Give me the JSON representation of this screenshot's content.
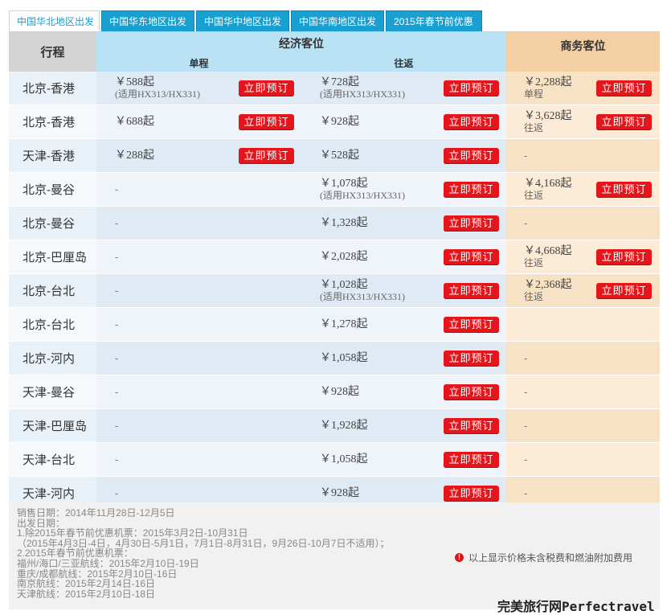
{
  "tabs": [
    {
      "label": "中国华北地区出发",
      "active": true
    },
    {
      "label": "中国华东地区出发",
      "active": false
    },
    {
      "label": "中国华中地区出发",
      "active": false
    },
    {
      "label": "中国华南地区出发",
      "active": false
    },
    {
      "label": "2015年春节前优惠",
      "active": false
    }
  ],
  "header": {
    "route": "行程",
    "economy": "经济客位",
    "business": "商务客位",
    "oneway": "单程",
    "roundtrip": "往返"
  },
  "book_label": "立即预订",
  "rows": [
    {
      "route": "北京-香港",
      "ow": {
        "price": "￥588起",
        "note": "(适用HX313/HX331)"
      },
      "rt": {
        "price": "￥728起",
        "note": "(适用HX313/HX331)"
      },
      "biz": {
        "price": "￥2,288起",
        "note": "单程"
      }
    },
    {
      "route": "北京-香港",
      "ow": {
        "price": "￥688起",
        "note": ""
      },
      "rt": {
        "price": "￥928起",
        "note": ""
      },
      "biz": {
        "price": "￥3,628起",
        "note": "往返"
      }
    },
    {
      "route": "天津-香港",
      "ow": {
        "price": "￥288起",
        "note": ""
      },
      "rt": {
        "price": "￥528起",
        "note": ""
      },
      "biz": null
    },
    {
      "route": "北京-曼谷",
      "ow": null,
      "rt": {
        "price": "￥1,078起",
        "note": "(适用HX313/HX331)"
      },
      "biz": {
        "price": "￥4,168起",
        "note": "往返"
      }
    },
    {
      "route": "北京-曼谷",
      "ow": null,
      "rt": {
        "price": "￥1,328起",
        "note": ""
      },
      "biz": null
    },
    {
      "route": "北京-巴厘岛",
      "ow": null,
      "rt": {
        "price": "￥2,028起",
        "note": ""
      },
      "biz": {
        "price": "￥4,668起",
        "note": "往返"
      }
    },
    {
      "route": "北京-台北",
      "ow": null,
      "rt": {
        "price": "￥1,028起",
        "note": "(适用HX313/HX331)"
      },
      "biz": {
        "price": "￥2,368起",
        "note": "往返"
      }
    },
    {
      "route": "北京-台北",
      "ow": null,
      "rt": {
        "price": "￥1,278起",
        "note": ""
      },
      "biz": "blank"
    },
    {
      "route": "北京-河内",
      "ow": null,
      "rt": {
        "price": "￥1,058起",
        "note": ""
      },
      "biz": null
    },
    {
      "route": "天津-曼谷",
      "ow": null,
      "rt": {
        "price": "￥928起",
        "note": ""
      },
      "biz": null
    },
    {
      "route": "天津-巴厘岛",
      "ow": null,
      "rt": {
        "price": "￥1,928起",
        "note": ""
      },
      "biz": null
    },
    {
      "route": "天津-台北",
      "ow": null,
      "rt": {
        "price": "￥1,058起",
        "note": ""
      },
      "biz": null
    },
    {
      "route": "天津-河内",
      "ow": null,
      "rt": {
        "price": "￥928起",
        "note": ""
      },
      "biz": null
    }
  ],
  "dash": "-",
  "notes": [
    "销售日期：2014年11月28日-12月5日",
    "出发日期：",
    "1.除2015年春节前优惠机票：2015年3月2日-10月31日",
    "（2015年4月3日-4日，4月30日-5月1日，7月1日-8月31日，9月26日-10月7日不适用）；",
    "2.2015年春节前优惠机票：",
    "福州/海口/三亚航线：2015年2月10日-19日",
    "重庆/成都航线：2015年2月10日-16日",
    "南京航线：2015年2月14日-16日",
    "天津航线：2015年2月10日-18日"
  ],
  "warning": "以上显示价格未含税费和燃油附加费用",
  "watermark": "完美旅行网Perfectravel",
  "colors": {
    "tab_blue": "#1a9fd1",
    "economy_header": "#b9e2f4",
    "business_header": "#f3cfa4",
    "book_button": "#e4151b"
  }
}
